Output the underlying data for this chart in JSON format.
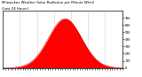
{
  "title": "Milwaukee Weather Solar Radiation per Minute W/m2",
  "subtitle": "(Last 24 Hours)",
  "background_color": "#ffffff",
  "plot_bg_color": "#ffffff",
  "fill_color": "#ff0000",
  "line_color": "#cc0000",
  "grid_color": "#bbbbbb",
  "border_color": "#000000",
  "ylim": [
    0,
    800
  ],
  "yticks": [
    0,
    100,
    200,
    300,
    400,
    500,
    600,
    700
  ],
  "num_points": 1440,
  "peak_index": 750,
  "peak_value": 690,
  "sigma": 200
}
